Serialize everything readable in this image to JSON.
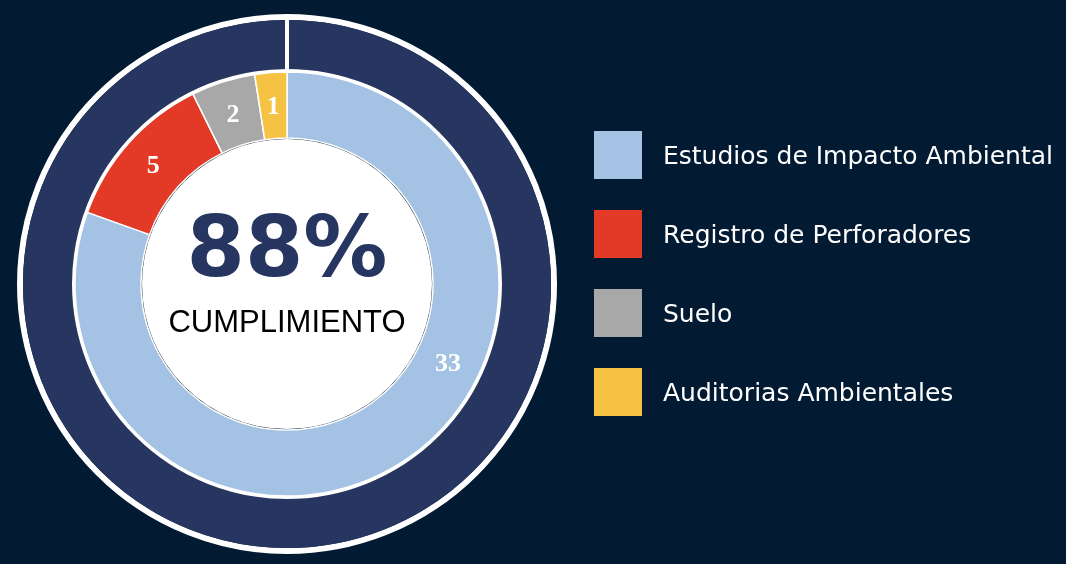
{
  "chart_data": {
    "type": "donut",
    "categories": [
      "Estudios de Impacto Ambiental",
      "Registro de Perforadores",
      "Suelo",
      "Auditorias Ambientales"
    ],
    "values": [
      33,
      5,
      2,
      1
    ],
    "colors": [
      "#a4c2e4",
      "#e23a27",
      "#a8a8a8",
      "#f6c244"
    ],
    "data_labels": true,
    "legend": "right",
    "annotations": [
      "88%",
      "CUMPLIMIENTO"
    ]
  }
}
